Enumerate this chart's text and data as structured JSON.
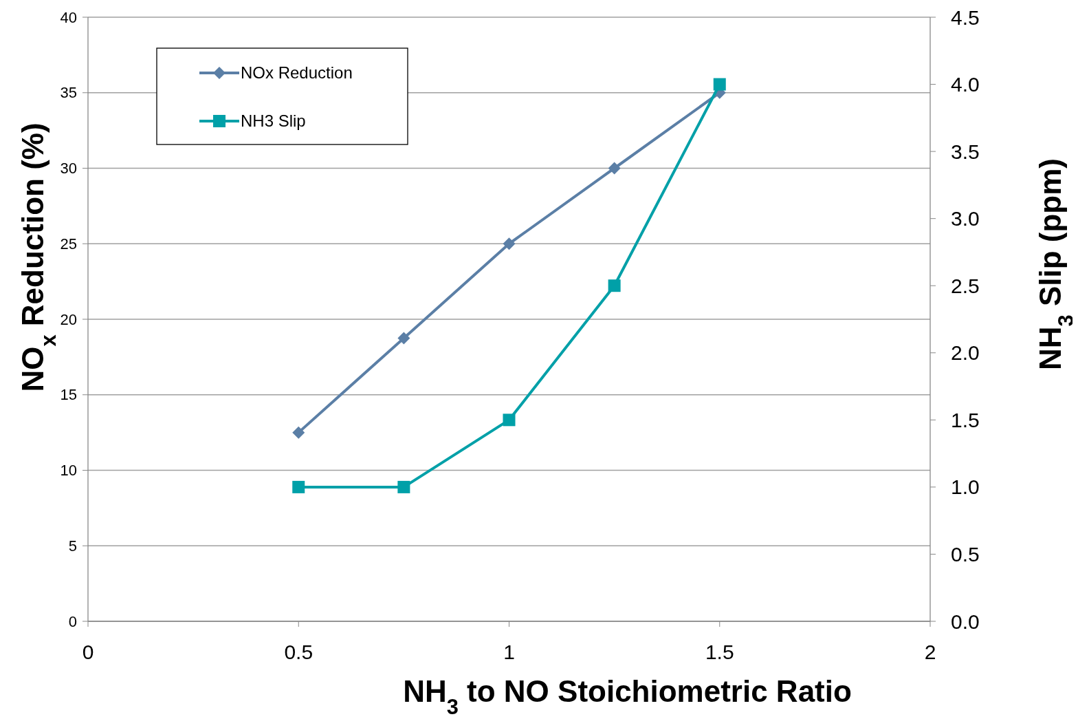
{
  "chart_data": {
    "type": "line",
    "xlabel": "NH$_{3}$ to NO Stoichiometric Ratio",
    "ylabel": "NO$_{x}$ Reduction (%)",
    "y2label": "NH$_{3}$ Slip (ppm)",
    "x": [
      0.5,
      0.75,
      1,
      1.25,
      1.5
    ],
    "xlim": [
      0,
      2
    ],
    "xticks": [
      0,
      0.5,
      1,
      1.5,
      2
    ],
    "ylim": [
      0,
      40
    ],
    "yticks": [
      0,
      5,
      10,
      15,
      20,
      25,
      30,
      35,
      40
    ],
    "y2lim": [
      0,
      4.5
    ],
    "y2ticks": [
      {
        "value": 0,
        "label": "0.0"
      },
      0.5,
      {
        "value": 1,
        "label": "1.0"
      },
      1.5,
      {
        "value": 2,
        "label": "2.0"
      },
      2.5,
      {
        "value": 3,
        "label": "3.0"
      },
      3.5,
      {
        "value": 4,
        "label": "4.0"
      },
      4.5
    ],
    "grid": "y",
    "legend": "top left",
    "line_style": "solid",
    "series": [
      {
        "name": "NOx Reduction",
        "color": "#5b7fa6",
        "marker": "diamond",
        "values": [
          12.5,
          18.75,
          25,
          30,
          35
        ]
      },
      {
        "name": "NH3 Slip",
        "color": "#00a0a8",
        "marker": "square",
        "axis": "y2",
        "values": [
          1,
          1,
          1.5,
          2.5,
          4
        ]
      }
    ]
  }
}
